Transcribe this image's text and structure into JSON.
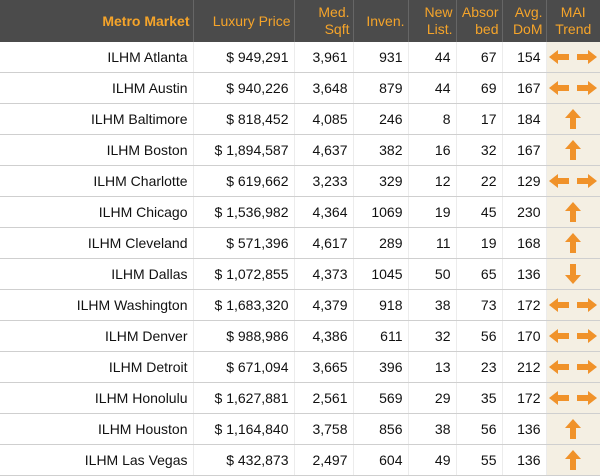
{
  "table": {
    "header": [
      [
        "Metro Market"
      ],
      [
        "Luxury Price"
      ],
      [
        "Med.",
        "Sqft"
      ],
      [
        "Inven."
      ],
      [
        "New",
        "List."
      ],
      [
        "Absor",
        "bed"
      ],
      [
        "Avg.",
        "DoM"
      ],
      [
        "MAI",
        "Trend"
      ]
    ],
    "rows": [
      [
        "ILHM Atlanta",
        "$ 949,291",
        "3,961",
        "931",
        "44",
        "67",
        "154"
      ],
      [
        "ILHM Austin",
        "$ 940,226",
        "3,648",
        "879",
        "44",
        "69",
        "167"
      ],
      [
        "ILHM Baltimore",
        "$ 818,452",
        "4,085",
        "246",
        "8",
        "17",
        "184"
      ],
      [
        "ILHM Boston",
        "$ 1,894,587",
        "4,637",
        "382",
        "16",
        "32",
        "167"
      ],
      [
        "ILHM Charlotte",
        "$ 619,662",
        "3,233",
        "329",
        "12",
        "22",
        "129"
      ],
      [
        "ILHM Chicago",
        "$ 1,536,982",
        "4,364",
        "1069",
        "19",
        "45",
        "230"
      ],
      [
        "ILHM Cleveland",
        "$ 571,396",
        "4,617",
        "289",
        "11",
        "19",
        "168"
      ],
      [
        "ILHM Dallas",
        "$ 1,072,855",
        "4,373",
        "1045",
        "50",
        "65",
        "136"
      ],
      [
        "ILHM Washington",
        "$ 1,683,320",
        "4,379",
        "918",
        "38",
        "73",
        "172"
      ],
      [
        "ILHM Denver",
        "$ 988,986",
        "4,386",
        "611",
        "32",
        "56",
        "170"
      ],
      [
        "ILHM Detroit",
        "$ 671,094",
        "3,665",
        "396",
        "13",
        "23",
        "212"
      ],
      [
        "ILHM Honolulu",
        "$ 1,627,881",
        "2,561",
        "569",
        "29",
        "35",
        "172"
      ],
      [
        "ILHM Houston",
        "$ 1,164,840",
        "3,758",
        "856",
        "38",
        "56",
        "136"
      ],
      [
        "ILHM Las Vegas",
        "$ 432,873",
        "2,497",
        "604",
        "49",
        "55",
        "136"
      ]
    ]
  }
}
